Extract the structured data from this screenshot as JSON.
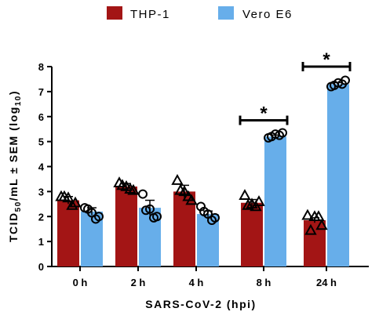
{
  "colors": {
    "thp1": "#A31515",
    "vero": "#67AEEA"
  },
  "chart_data": {
    "type": "bar",
    "categories": [
      "0 h",
      "2 h",
      "4 h",
      "8 h",
      "24 h"
    ],
    "series": [
      {
        "name": "THP-1",
        "values": [
          2.65,
          3.2,
          3.0,
          2.55,
          1.85
        ],
        "sem": [
          0.15,
          0.12,
          0.25,
          0.13,
          0.1
        ],
        "points": [
          [
            2.8,
            2.75,
            2.55,
            2.8,
            2.45
          ],
          [
            3.35,
            3.2,
            3.05,
            3.25,
            3.1
          ],
          [
            3.45,
            3.0,
            2.65,
            3.05,
            2.8
          ],
          [
            2.85,
            2.5,
            2.6,
            2.45,
            2.4
          ],
          [
            2.05,
            2.0,
            1.65,
            1.45,
            2.0
          ]
        ],
        "marker": "triangle"
      },
      {
        "name": "Vero E6",
        "values": [
          2.2,
          2.35,
          2.1,
          5.2,
          7.3
        ],
        "sem": [
          0.15,
          0.3,
          0.12,
          0.06,
          0.06
        ],
        "points": [
          [
            2.35,
            2.15,
            2.0,
            2.3,
            1.9
          ],
          [
            2.9,
            2.3,
            2.0,
            2.25,
            1.95
          ],
          [
            2.4,
            2.1,
            1.95,
            2.2,
            1.85
          ],
          [
            5.15,
            5.3,
            5.35,
            5.2,
            5.25
          ],
          [
            7.2,
            7.35,
            7.45,
            7.25,
            7.3
          ]
        ],
        "marker": "circle"
      }
    ],
    "ylabel": "TCID",
    "ylabel_sub": "50",
    "ylabel_mid": "/mL ± SEM (log",
    "ylabel_sub2": "10",
    "ylabel_end": ")",
    "xlabel": "SARS-CoV-2 (hpi)",
    "ylim": [
      0,
      8
    ],
    "yticks": [
      "0",
      "1",
      "2",
      "3",
      "4",
      "5",
      "6",
      "7",
      "8"
    ],
    "annotations": [
      {
        "text": "*",
        "category_index": 3,
        "y": 5.85
      },
      {
        "text": "*",
        "category_index": 4,
        "y": 8.0
      }
    ],
    "legend_position": "top",
    "grid": false
  }
}
